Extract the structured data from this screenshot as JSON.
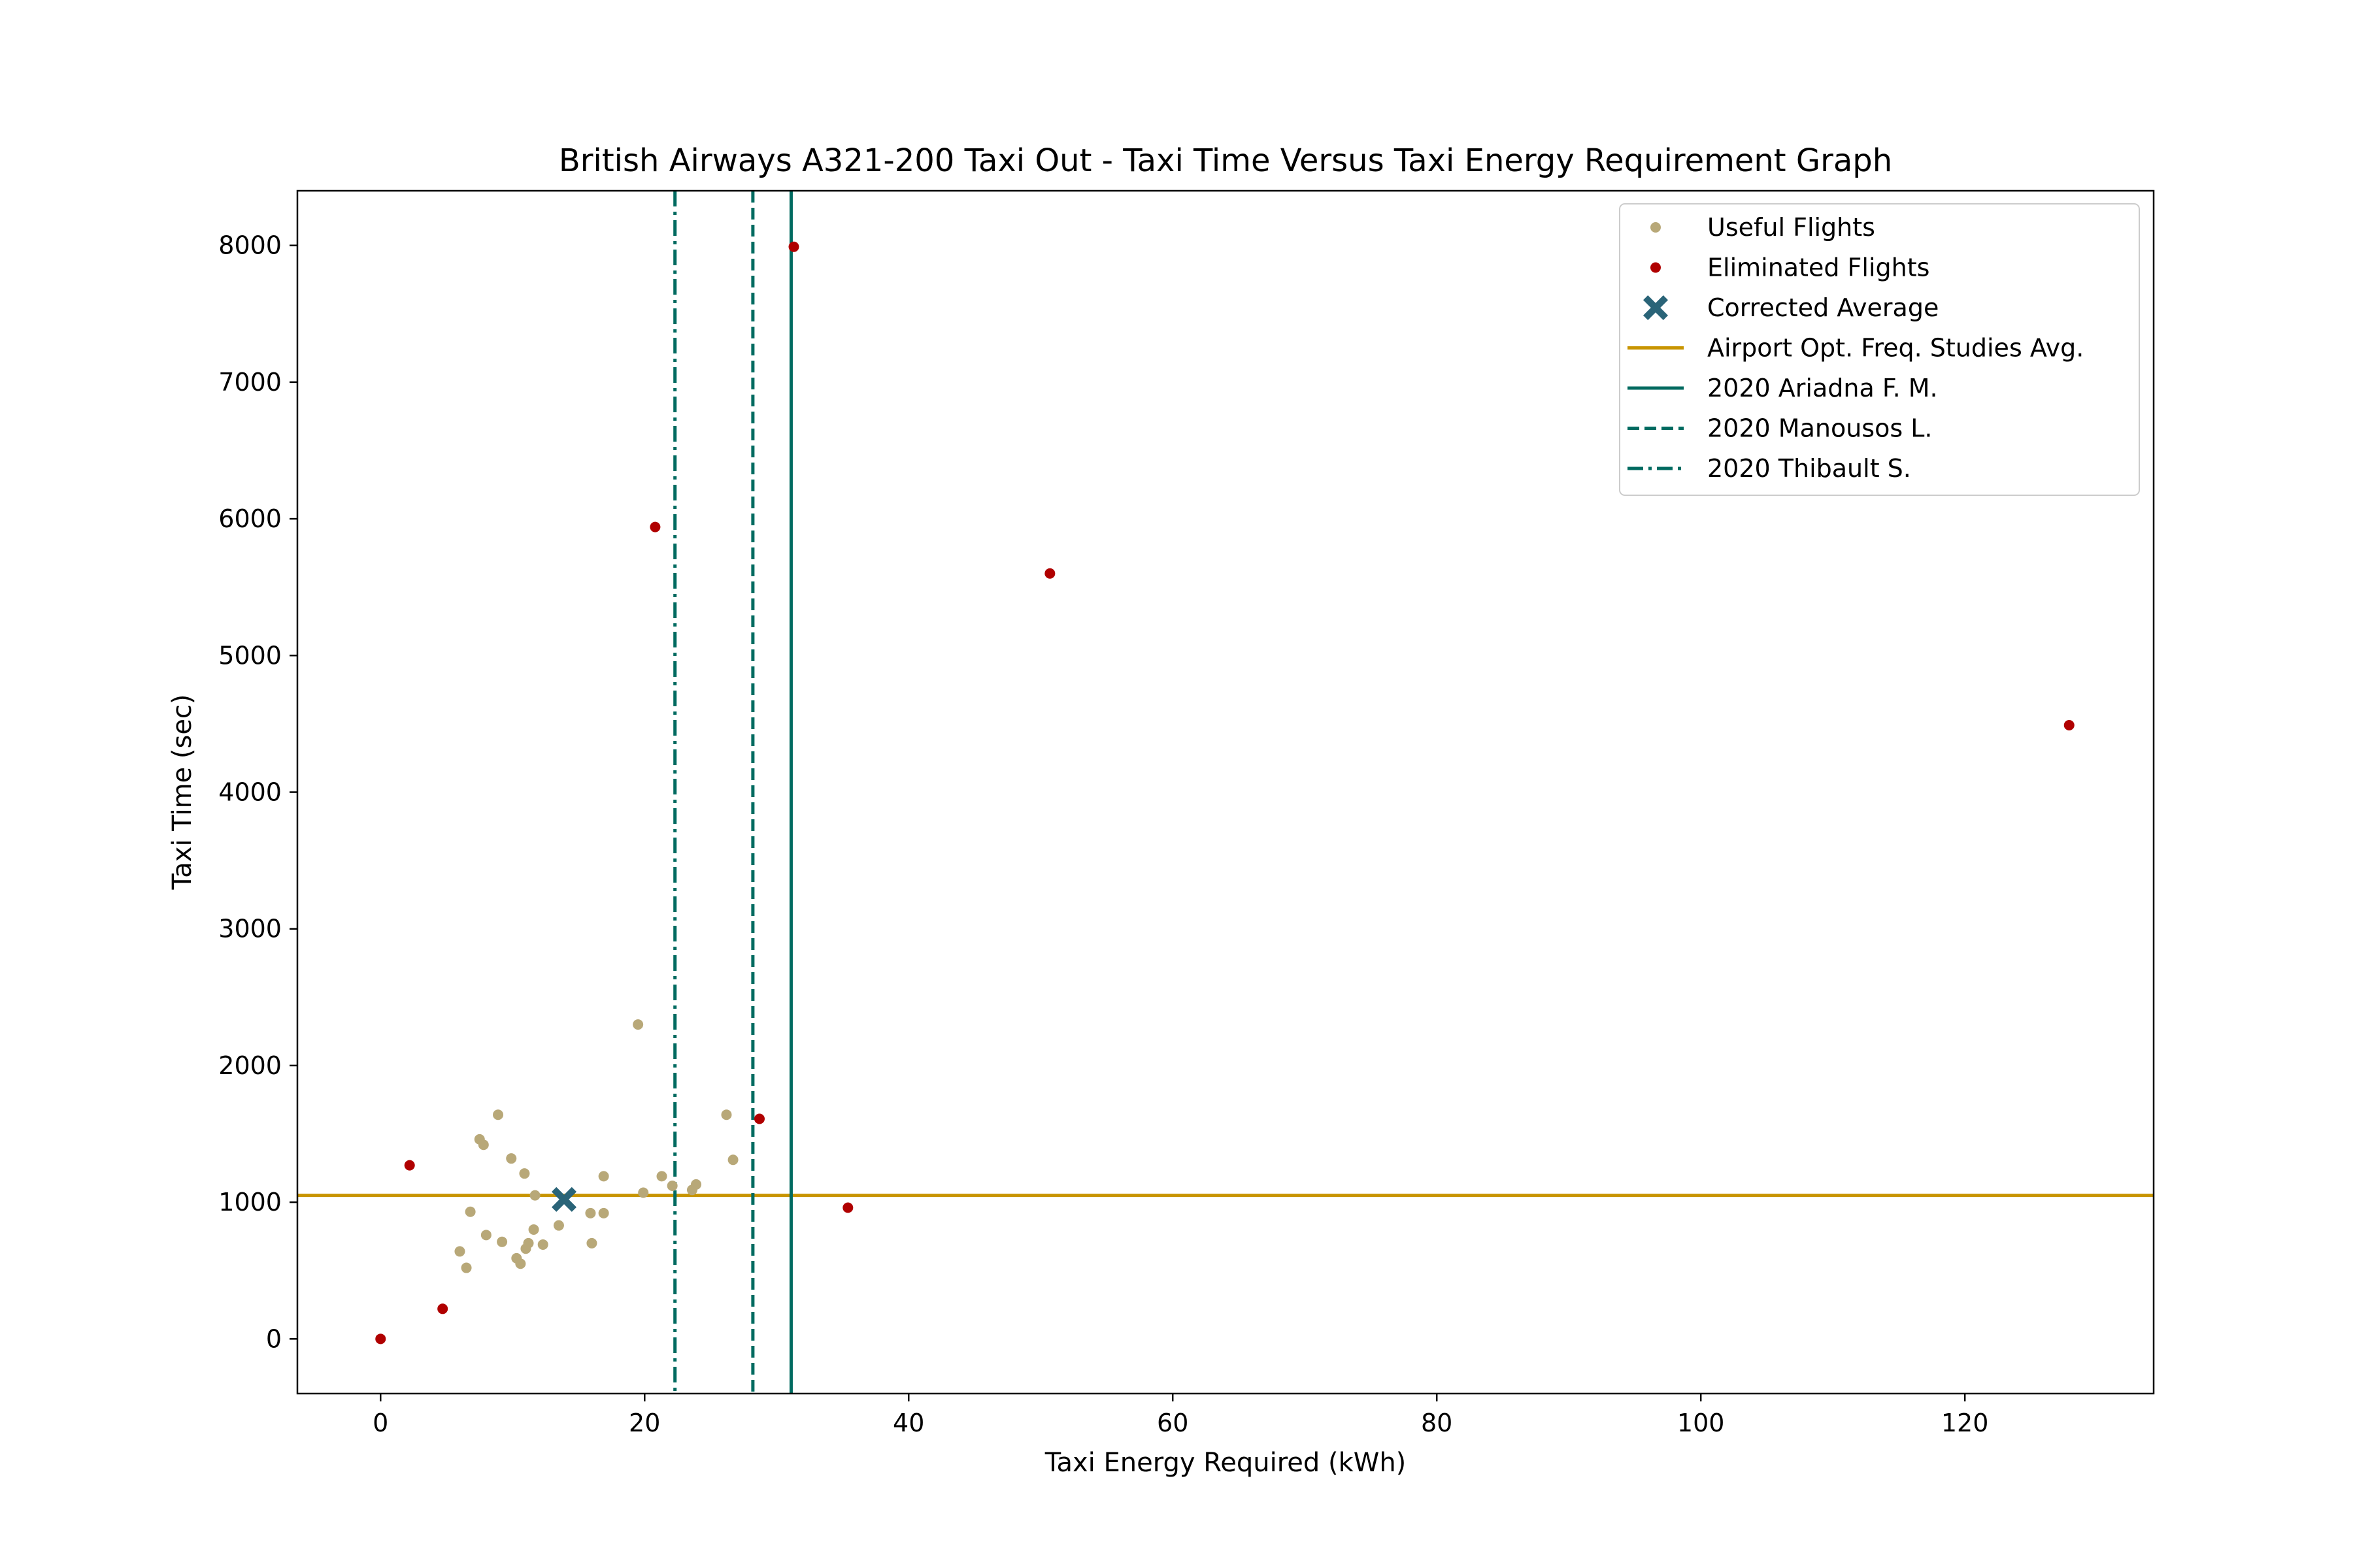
{
  "chart_data": {
    "type": "scatter",
    "title": "British Airways A321-200 Taxi Out - Taxi Time Versus Taxi Energy Requirement Graph",
    "xlabel": "Taxi Energy Required (kWh)",
    "ylabel": "Taxi Time (sec)",
    "xlim": [
      -6.3,
      134.3
    ],
    "ylim": [
      -400,
      8400
    ],
    "xticks": [
      0,
      20,
      40,
      60,
      80,
      100,
      120
    ],
    "yticks": [
      0,
      1000,
      2000,
      3000,
      4000,
      5000,
      6000,
      7000,
      8000
    ],
    "grid": false,
    "legend_position": "top-right",
    "series": [
      {
        "name": "Useful Flights",
        "kind": "points",
        "color": "#b8a878",
        "points": [
          [
            6.0,
            640
          ],
          [
            6.5,
            520
          ],
          [
            6.8,
            930
          ],
          [
            7.5,
            1460
          ],
          [
            7.8,
            1420
          ],
          [
            8.0,
            760
          ],
          [
            8.9,
            1640
          ],
          [
            9.2,
            710
          ],
          [
            9.9,
            1320
          ],
          [
            10.3,
            590
          ],
          [
            10.6,
            550
          ],
          [
            10.9,
            1210
          ],
          [
            11.0,
            660
          ],
          [
            11.2,
            700
          ],
          [
            11.6,
            800
          ],
          [
            11.7,
            1050
          ],
          [
            12.3,
            690
          ],
          [
            13.5,
            830
          ],
          [
            15.9,
            920
          ],
          [
            16.0,
            700
          ],
          [
            16.9,
            1190
          ],
          [
            16.9,
            920
          ],
          [
            19.5,
            2300
          ],
          [
            19.9,
            1070
          ],
          [
            21.3,
            1190
          ],
          [
            22.1,
            1120
          ],
          [
            23.6,
            1090
          ],
          [
            23.9,
            1130
          ],
          [
            26.2,
            1640
          ],
          [
            26.7,
            1310
          ]
        ]
      },
      {
        "name": "Eliminated Flights",
        "kind": "points",
        "color": "#b00000",
        "points": [
          [
            0.0,
            0
          ],
          [
            2.2,
            1270
          ],
          [
            4.7,
            220
          ],
          [
            20.8,
            5940
          ],
          [
            28.7,
            1610
          ],
          [
            31.3,
            7990
          ],
          [
            35.4,
            960
          ],
          [
            50.7,
            5600
          ],
          [
            127.9,
            4490
          ]
        ]
      },
      {
        "name": "Corrected Average",
        "kind": "marker",
        "color": "#2a6478",
        "points": [
          [
            13.9,
            1020
          ]
        ]
      },
      {
        "name": "Airport Opt. Freq. Studies Avg.",
        "kind": "hline",
        "color": "#c89400",
        "y": 1050
      },
      {
        "name": "2020 Ariadna F. M.",
        "kind": "vline",
        "color": "#006a60",
        "style": "solid",
        "x": 31.1
      },
      {
        "name": "2020 Manousos L.",
        "kind": "vline",
        "color": "#006a60",
        "style": "dashed",
        "x": 28.2
      },
      {
        "name": "2020 Thibault S.",
        "kind": "vline",
        "color": "#006a60",
        "style": "dashdot",
        "x": 22.3
      }
    ]
  }
}
